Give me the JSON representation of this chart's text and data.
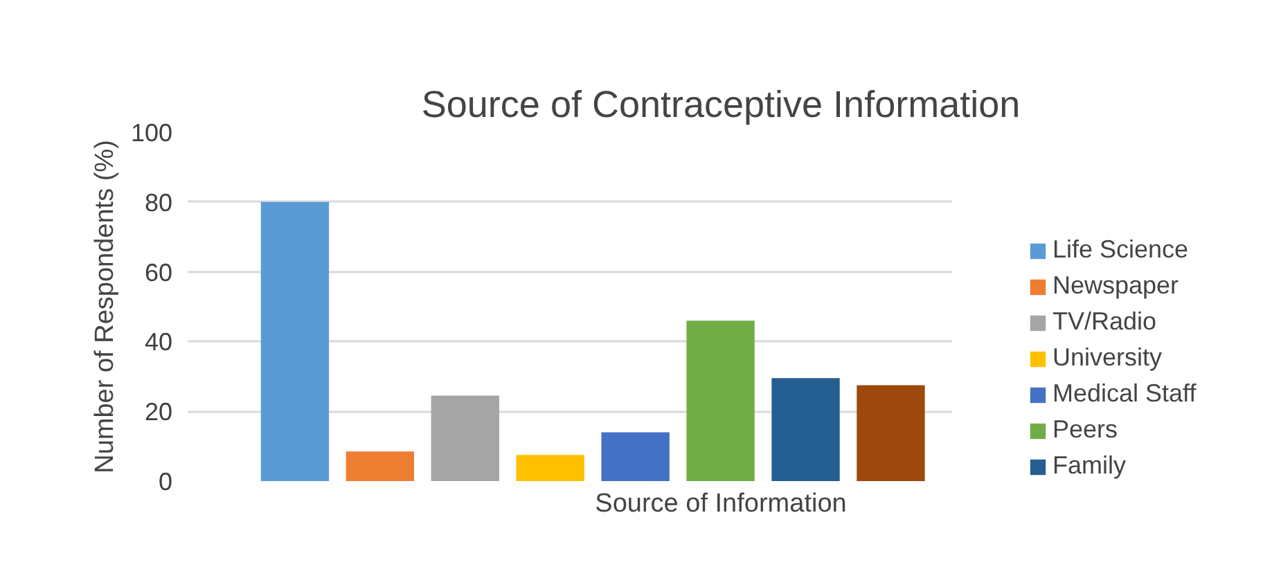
{
  "chart_data": {
    "type": "bar",
    "title": "Source of Contraceptive Information",
    "xlabel": "Source of Information",
    "ylabel": "Number of Respondents (%)",
    "categories": [
      null
    ],
    "series": [
      {
        "name": "Life Science",
        "color": "#5b9bd5",
        "values": [
          80
        ]
      },
      {
        "name": "Newspaper",
        "color": "#ed7d31",
        "values": [
          8.5
        ]
      },
      {
        "name": "TV/Radio",
        "color": "#a5a5a5",
        "values": [
          24.5
        ]
      },
      {
        "name": "University",
        "color": "#ffc000",
        "values": [
          7.5
        ]
      },
      {
        "name": "Medical Staff",
        "color": "#4472c4",
        "values": [
          14
        ]
      },
      {
        "name": "Peers",
        "color": "#70ad47",
        "values": [
          46
        ]
      },
      {
        "name": "Family",
        "color": "#255e91",
        "values": [
          29.5
        ]
      },
      {
        "color": "#9e480e",
        "values": [
          27.5
        ]
      }
    ],
    "ylim": [
      0,
      100
    ],
    "yticks": [
      0,
      20,
      40,
      60,
      80,
      100
    ],
    "grid": "y",
    "legend": "right"
  }
}
